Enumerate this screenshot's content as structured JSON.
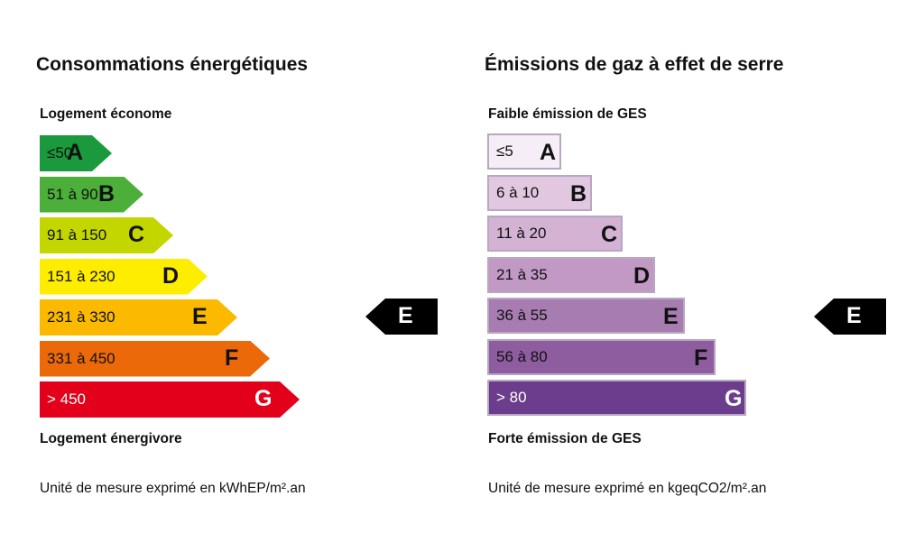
{
  "energy": {
    "title": "Consommations énergétiques",
    "top_label": "Logement économe",
    "bottom_label": "Logement énergivore",
    "unit": "Unité de mesure exprimé en kWhEP/m².an",
    "marker": "E",
    "bars": [
      {
        "range": "≤50",
        "letter": "A",
        "color": "#1a9a3c",
        "text": "#111111"
      },
      {
        "range": "51 à 90",
        "letter": "B",
        "color": "#4caf3a",
        "text": "#111111"
      },
      {
        "range": "91 à 150",
        "letter": "C",
        "color": "#c3d600",
        "text": "#111111"
      },
      {
        "range": "151 à 230",
        "letter": "D",
        "color": "#ffed00",
        "text": "#111111"
      },
      {
        "range": "231 à 330",
        "letter": "E",
        "color": "#fbba00",
        "text": "#111111"
      },
      {
        "range": "331 à 450",
        "letter": "F",
        "color": "#eb6909",
        "text": "#111111"
      },
      {
        "range": "> 450",
        "letter": "G",
        "color": "#e2001a",
        "text": "#ffffff"
      }
    ]
  },
  "ges": {
    "title": "Émissions de gaz à effet de serre",
    "top_label": "Faible émission de GES",
    "bottom_label": "Forte émission de GES",
    "unit": "Unité de mesure exprimé en kgeqCO2/m².an",
    "marker": "E",
    "bars": [
      {
        "range": "≤5",
        "letter": "A",
        "color": "#f6eef6",
        "text": "#111111"
      },
      {
        "range": "6 à 10",
        "letter": "B",
        "color": "#e1c8e0",
        "text": "#111111"
      },
      {
        "range": "11 à 20",
        "letter": "C",
        "color": "#d3b2d3",
        "text": "#111111"
      },
      {
        "range": "21 à 35",
        "letter": "D",
        "color": "#c199c4",
        "text": "#111111"
      },
      {
        "range": "36 à 55",
        "letter": "E",
        "color": "#a67cb1",
        "text": "#111111"
      },
      {
        "range": "56 à 80",
        "letter": "F",
        "color": "#8e5d9f",
        "text": "#111111"
      },
      {
        "range": "> 80",
        "letter": "G",
        "color": "#6b3d8c",
        "text": "#ffffff"
      }
    ]
  }
}
